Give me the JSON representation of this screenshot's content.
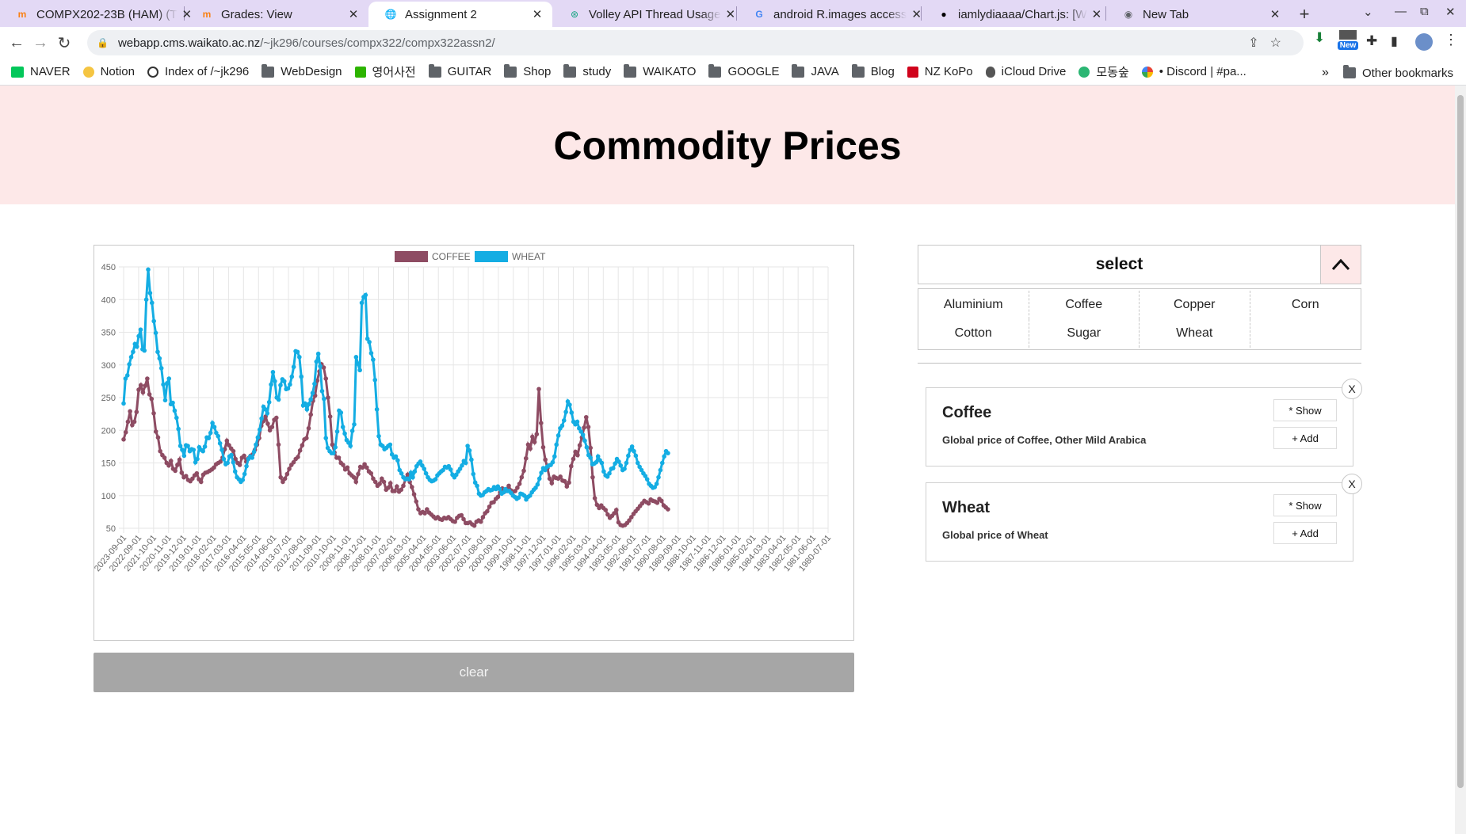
{
  "browser": {
    "tabs": [
      {
        "title": "COMPX202-23B (HAM) (T",
        "icon": "moodle-icon",
        "active": false
      },
      {
        "title": "Grades: View",
        "icon": "moodle-icon",
        "active": false
      },
      {
        "title": "Assignment 2",
        "icon": "globe-icon",
        "active": true
      },
      {
        "title": "Volley API Thread Usage",
        "icon": "openai-icon",
        "active": false
      },
      {
        "title": "android R.images access",
        "icon": "google-icon",
        "active": false
      },
      {
        "title": "iamlydiaaaa/Chart.js: [W",
        "icon": "github-icon",
        "active": false
      },
      {
        "title": "New Tab",
        "icon": "chrome-icon",
        "active": false
      }
    ],
    "url_host": "webapp.cms.waikato.ac.nz",
    "url_path": "/~jk296/courses/compx322/compx322assn2/",
    "new_badge": "New",
    "bookmarks": [
      {
        "label": "NAVER",
        "icon": "naver-icon"
      },
      {
        "label": "Notion",
        "icon": "notion-icon"
      },
      {
        "label": "Index of /~jk296",
        "icon": "globe-icon"
      },
      {
        "label": "WebDesign",
        "icon": "folder-icon"
      },
      {
        "label": "영어사전",
        "icon": "dictionary-icon"
      },
      {
        "label": "GUITAR",
        "icon": "folder-icon"
      },
      {
        "label": "Shop",
        "icon": "folder-icon"
      },
      {
        "label": "study",
        "icon": "folder-icon"
      },
      {
        "label": "WAIKATO",
        "icon": "folder-icon"
      },
      {
        "label": "GOOGLE",
        "icon": "folder-icon"
      },
      {
        "label": "JAVA",
        "icon": "folder-icon"
      },
      {
        "label": "Blog",
        "icon": "folder-icon"
      },
      {
        "label": "NZ KoPo",
        "icon": "kopo-icon"
      },
      {
        "label": "iCloud Drive",
        "icon": "apple-icon"
      },
      {
        "label": "모동숲",
        "icon": "leaf-icon"
      },
      {
        "label": "• Discord | #pa...",
        "icon": "discord-icon"
      }
    ],
    "more_bookmarks": "»",
    "other_bookmarks": "Other bookmarks"
  },
  "page": {
    "title": "Commodity Prices",
    "select_label": "select",
    "options": [
      "Aluminium",
      "Coffee",
      "Copper",
      "Corn",
      "Cotton",
      "Sugar",
      "Wheat"
    ],
    "clear_label": "clear",
    "cards": [
      {
        "title": "Coffee",
        "description": "Global price of Coffee, Other Mild Arabica",
        "show_label": "* Show",
        "add_label": "+ Add",
        "close_label": "X"
      },
      {
        "title": "Wheat",
        "description": "Global price of Wheat",
        "show_label": "* Show",
        "add_label": "+ Add",
        "close_label": "X"
      }
    ]
  },
  "colors": {
    "coffee": "#8e4c63",
    "wheat": "#14ade3",
    "header_bg": "#fde8e8"
  },
  "chart_data": {
    "type": "line",
    "title": "",
    "xlabel": "",
    "ylabel": "",
    "ylim": [
      50,
      450
    ],
    "yticks": [
      50,
      100,
      150,
      200,
      250,
      300,
      350,
      400,
      450
    ],
    "x_tick_labels": [
      "2023-09-01",
      "2022-09-01",
      "2021-10-01",
      "2020-11-01",
      "2019-12-01",
      "2019-01-01",
      "2018-02-01",
      "2017-03-01",
      "2016-04-01",
      "2015-05-01",
      "2014-06-01",
      "2013-07-01",
      "2012-08-01",
      "2011-09-01",
      "2010-10-01",
      "2009-11-01",
      "2008-12-01",
      "2008-01-01",
      "2007-02-01",
      "2006-03-01",
      "2005-04-01",
      "2004-05-01",
      "2003-06-01",
      "2002-07-01",
      "2001-08-01",
      "2000-09-01",
      "1999-10-01",
      "1998-11-01",
      "1997-12-01",
      "1997-01-01",
      "1996-02-01",
      "1995-03-01",
      "1994-04-01",
      "1993-05-01",
      "1992-06-01",
      "1991-07-01",
      "1990-08-01",
      "1989-09-01",
      "1988-10-01",
      "1987-11-01",
      "1986-12-01",
      "1986-01-01",
      "1985-02-01",
      "1984-03-01",
      "1983-04-01",
      "1982-05-01",
      "1981-06-01",
      "1980-07-01"
    ],
    "legend_position": "top",
    "grid": true,
    "series": [
      {
        "name": "COFFEE",
        "color": "#8e4c63",
        "values": [
          186,
          197,
          213,
          229,
          208,
          213,
          228,
          262,
          269,
          258,
          268,
          279,
          255,
          248,
          226,
          198,
          189,
          168,
          162,
          158,
          150,
          146,
          153,
          141,
          138,
          147,
          155,
          135,
          128,
          130,
          124,
          122,
          126,
          131,
          134,
          125,
          121,
          132,
          135,
          136,
          138,
          140,
          143,
          148,
          150,
          152,
          158,
          171,
          184,
          177,
          172,
          168,
          156,
          150,
          147,
          158,
          161,
          152,
          157,
          161,
          163,
          170,
          178,
          188,
          207,
          214,
          221,
          210,
          200,
          205,
          216,
          219,
          178,
          128,
          121,
          126,
          133,
          141,
          147,
          151,
          156,
          159,
          169,
          177,
          186,
          188,
          203,
          224,
          245,
          253,
          276,
          290,
          301,
          296,
          279,
          250,
          221,
          178,
          166,
          158,
          158,
          150,
          147,
          140,
          143,
          134,
          131,
          128,
          121,
          133,
          144,
          143,
          148,
          143,
          137,
          134,
          126,
          121,
          115,
          118,
          126,
          121,
          109,
          112,
          119,
          107,
          107,
          114,
          106,
          109,
          115,
          125,
          132,
          121,
          113,
          102,
          91,
          79,
          73,
          75,
          73,
          79,
          74,
          71,
          68,
          65,
          67,
          64,
          63,
          66,
          65,
          67,
          64,
          61,
          60,
          66,
          69,
          70,
          64,
          58,
          58,
          59,
          56,
          54,
          60,
          62,
          60,
          67,
          73,
          76,
          83,
          89,
          90,
          95,
          98,
          105,
          111,
          106,
          110,
          115,
          108,
          106,
          107,
          112,
          118,
          128,
          138,
          157,
          178,
          172,
          190,
          182,
          194,
          263,
          211,
          174,
          155,
          142,
          126,
          119,
          129,
          127,
          126,
          129,
          123,
          122,
          114,
          120,
          145,
          156,
          167,
          162,
          177,
          189,
          204,
          220,
          205,
          173,
          128,
          96,
          86,
          81,
          85,
          81,
          78,
          71,
          66,
          69,
          73,
          78,
          59,
          55,
          54,
          55,
          58,
          62,
          67,
          72,
          76,
          80,
          84,
          88,
          92,
          90,
          88,
          94,
          92,
          91,
          89,
          95,
          92,
          85,
          82,
          79
        ]
      },
      {
        "name": "WHEAT",
        "color": "#14ade3",
        "values": [
          241,
          279,
          284,
          301,
          312,
          320,
          332,
          328,
          344,
          354,
          324,
          322,
          400,
          446,
          410,
          395,
          367,
          349,
          320,
          310,
          295,
          270,
          246,
          272,
          279,
          240,
          242,
          230,
          219,
          202,
          176,
          170,
          161,
          177,
          176,
          168,
          171,
          170,
          151,
          156,
          174,
          170,
          168,
          175,
          189,
          188,
          196,
          211,
          205,
          196,
          191,
          180,
          170,
          156,
          148,
          150,
          160,
          162,
          151,
          137,
          128,
          125,
          121,
          124,
          133,
          145,
          156,
          160,
          158,
          167,
          178,
          189,
          201,
          218,
          236,
          232,
          226,
          243,
          270,
          289,
          275,
          250,
          247,
          269,
          278,
          275,
          263,
          264,
          270,
          282,
          297,
          321,
          320,
          312,
          282,
          238,
          241,
          232,
          240,
          247,
          257,
          271,
          305,
          317,
          298,
          260,
          248,
          188,
          173,
          168,
          165,
          165,
          174,
          198,
          230,
          227,
          205,
          195,
          185,
          181,
          176,
          199,
          209,
          312,
          302,
          292,
          395,
          404,
          407,
          340,
          335,
          318,
          308,
          277,
          232,
          191,
          178,
          176,
          171,
          173,
          176,
          178,
          163,
          158,
          160,
          154,
          139,
          134,
          128,
          125,
          126,
          125,
          135,
          128,
          137,
          145,
          149,
          152,
          146,
          141,
          134,
          128,
          124,
          122,
          123,
          125,
          131,
          134,
          137,
          139,
          144,
          143,
          145,
          140,
          132,
          128,
          132,
          137,
          141,
          146,
          153,
          150,
          176,
          169,
          155,
          133,
          120,
          115,
          103,
          100,
          101,
          105,
          107,
          110,
          108,
          109,
          113,
          110,
          114,
          110,
          103,
          105,
          110,
          107,
          107,
          104,
          100,
          98,
          95,
          97,
          103,
          102,
          100,
          94,
          98,
          100,
          105,
          109,
          112,
          117,
          126,
          135,
          142,
          139,
          144,
          146,
          147,
          151,
          160,
          178,
          192,
          203,
          207,
          215,
          228,
          244,
          239,
          227,
          213,
          209,
          213,
          203,
          198,
          193,
          184,
          174,
          162,
          158,
          148,
          149,
          151,
          160,
          154,
          150,
          137,
          131,
          129,
          134,
          141,
          142,
          149,
          156,
          152,
          146,
          139,
          141,
          150,
          161,
          170,
          175,
          168,
          161,
          150,
          144,
          139,
          134,
          130,
          125,
          118,
          115,
          112,
          113,
          118,
          128,
          139,
          150,
          160,
          168,
          165
        ]
      }
    ]
  }
}
